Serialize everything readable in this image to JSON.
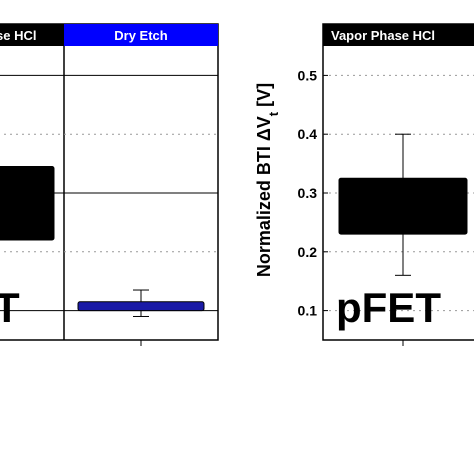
{
  "chart_data": [
    {
      "type": "box",
      "panels": [
        {
          "header": "se HCl",
          "header_bg": "#000000",
          "header_fg": "#ffffff"
        },
        {
          "header": "Dry Etch",
          "header_bg": "#0000ff",
          "header_fg": "#ffffff"
        }
      ],
      "device_label": "T",
      "ylim": [
        0.05,
        0.55
      ],
      "grid": "dotted",
      "boxes": [
        {
          "panel": 0,
          "q1": 0.22,
          "q3": 0.345,
          "color": "#000000",
          "whiskers": false
        },
        {
          "panel": 1,
          "q1": 0.1,
          "q3": 0.115,
          "color": "#1a1aa6",
          "whisker_low": 0.09,
          "whisker_high": 0.135,
          "whiskers": true
        }
      ]
    },
    {
      "type": "box",
      "panels": [
        {
          "header": "Vapor Phase HCl",
          "header_bg": "#000000",
          "header_fg": "#ffffff"
        }
      ],
      "ylabel_main": "Normalized BTI ΔV",
      "ylabel_sub": "t",
      "ylabel_unit": " [V]",
      "device_label": "pFET",
      "ylim": [
        0.05,
        0.55
      ],
      "yticks": [
        "0.1",
        "0.2",
        "0.3",
        "0.4",
        "0.5"
      ],
      "grid": "dotted",
      "boxes": [
        {
          "panel": 0,
          "q1": 0.23,
          "q3": 0.325,
          "color": "#000000",
          "whisker_low": 0.16,
          "whisker_high": 0.4,
          "whiskers": true
        }
      ]
    }
  ]
}
